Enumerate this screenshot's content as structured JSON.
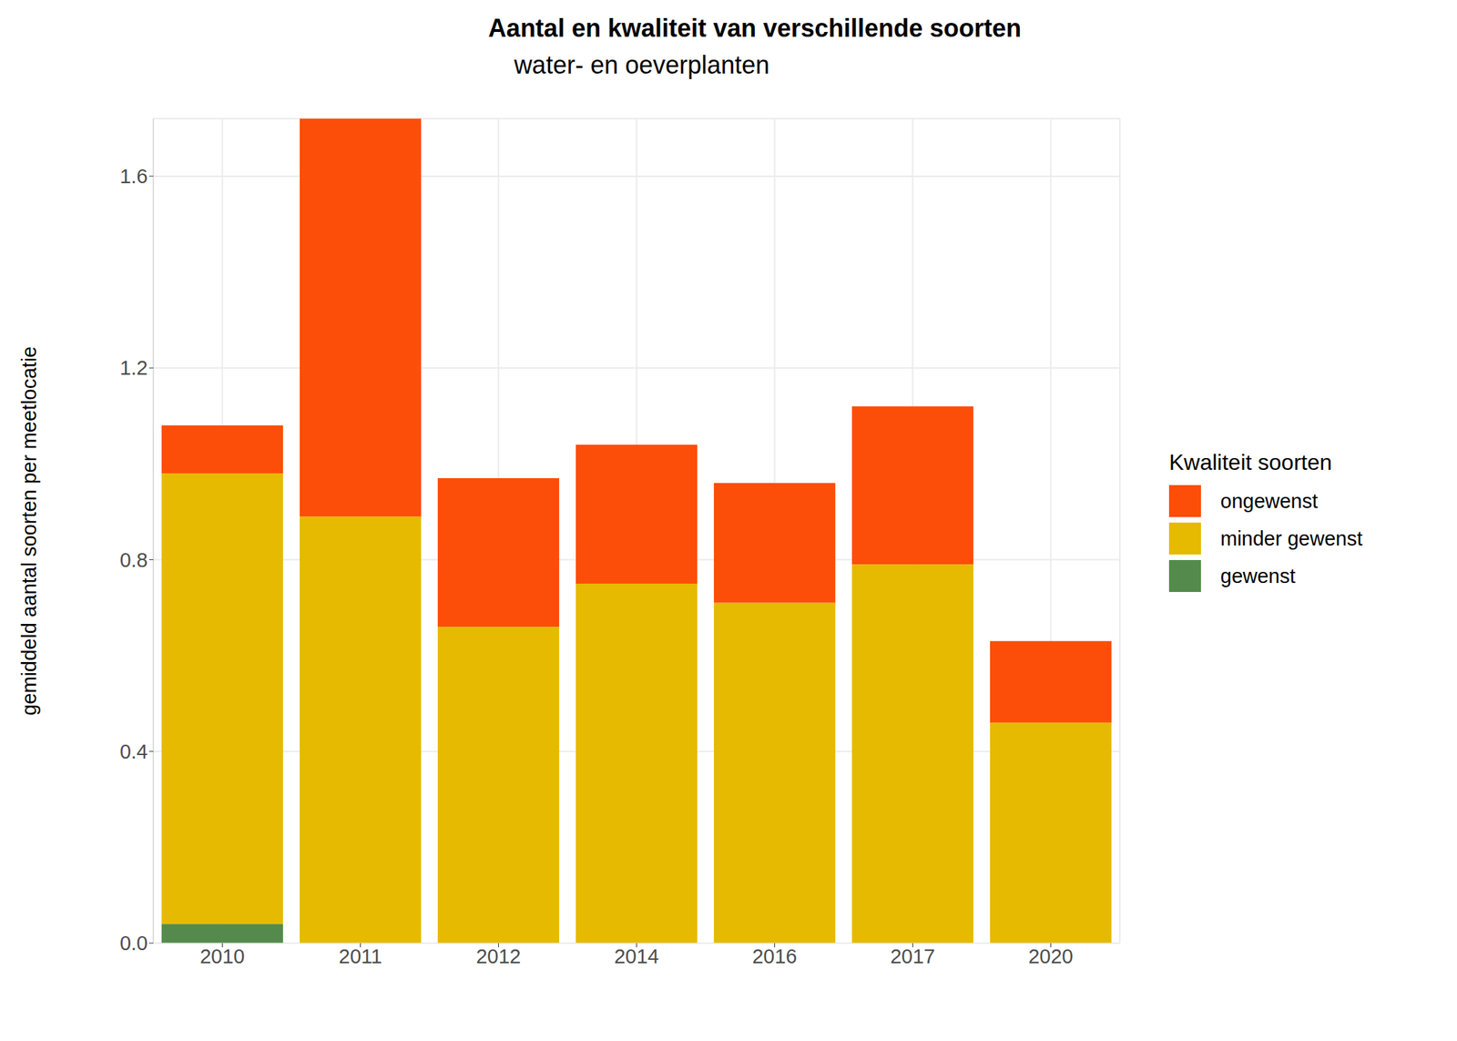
{
  "chart_data": {
    "type": "bar",
    "title": "Aantal en kwaliteit van verschillende soorten",
    "subtitle": "water- en oeverplanten",
    "y_label": "gemiddeld aantal soorten per meetlocatie",
    "legend_title": "Kwaliteit soorten",
    "categories": [
      "2010",
      "2011",
      "2012",
      "2014",
      "2016",
      "2017",
      "2020"
    ],
    "series": [
      {
        "name": "ongewenst",
        "color": "#FC4E08",
        "values": [
          0.1,
          0.83,
          0.31,
          0.29,
          0.25,
          0.33,
          0.17
        ]
      },
      {
        "name": "minder gewenst",
        "color": "#E6BA00",
        "values": [
          0.94,
          0.89,
          0.66,
          0.75,
          0.71,
          0.79,
          0.46
        ]
      },
      {
        "name": "gewenst",
        "color": "#548B4C",
        "values": [
          0.04,
          0,
          0,
          0,
          0,
          0,
          0
        ]
      }
    ],
    "ylim": [
      0,
      1.72
    ],
    "yticks": [
      {
        "value": 0,
        "label": "0.0"
      },
      0.4,
      0.8,
      1.2,
      1.6
    ],
    "stacked": true,
    "grid": true,
    "legend": "right"
  }
}
